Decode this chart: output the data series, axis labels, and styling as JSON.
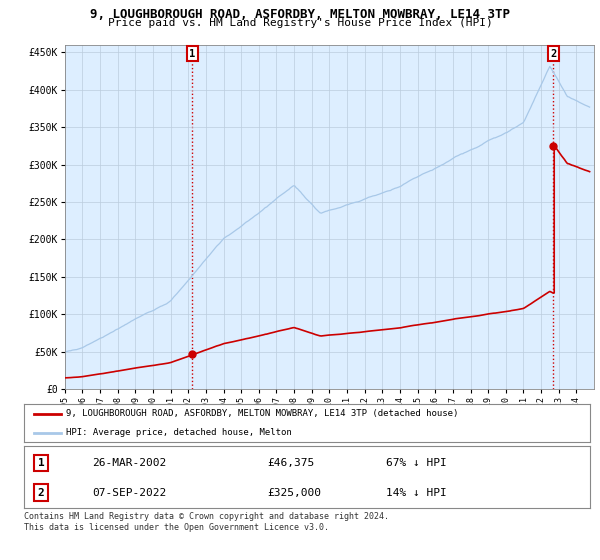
{
  "title": "9, LOUGHBOROUGH ROAD, ASFORDBY, MELTON MOWBRAY, LE14 3TP",
  "subtitle": "Price paid vs. HM Land Registry's House Price Index (HPI)",
  "ylim": [
    0,
    460000
  ],
  "yticks": [
    0,
    50000,
    100000,
    150000,
    200000,
    250000,
    300000,
    350000,
    400000,
    450000
  ],
  "ytick_labels": [
    "£0",
    "£50K",
    "£100K",
    "£150K",
    "£200K",
    "£250K",
    "£300K",
    "£350K",
    "£400K",
    "£450K"
  ],
  "xlim_start": 1995.0,
  "xlim_end": 2025.0,
  "sale1_year": 2002.23,
  "sale1_price": 46375,
  "sale1_label": "1",
  "sale2_year": 2022.69,
  "sale2_price": 325000,
  "sale2_label": "2",
  "hpi_color": "#a8c8e8",
  "price_color": "#cc0000",
  "vline_color": "#cc0000",
  "background_color": "#ffffff",
  "plot_bg": "#ddeeff",
  "legend_line1": "9, LOUGHBOROUGH ROAD, ASFORDBY, MELTON MOWBRAY, LE14 3TP (detached house)",
  "legend_line2": "HPI: Average price, detached house, Melton",
  "table_row1": [
    "1",
    "26-MAR-2002",
    "£46,375",
    "67% ↓ HPI"
  ],
  "table_row2": [
    "2",
    "07-SEP-2022",
    "£325,000",
    "14% ↓ HPI"
  ],
  "footer": "Contains HM Land Registry data © Crown copyright and database right 2024.\nThis data is licensed under the Open Government Licence v3.0.",
  "title_fontsize": 9,
  "subtitle_fontsize": 8
}
